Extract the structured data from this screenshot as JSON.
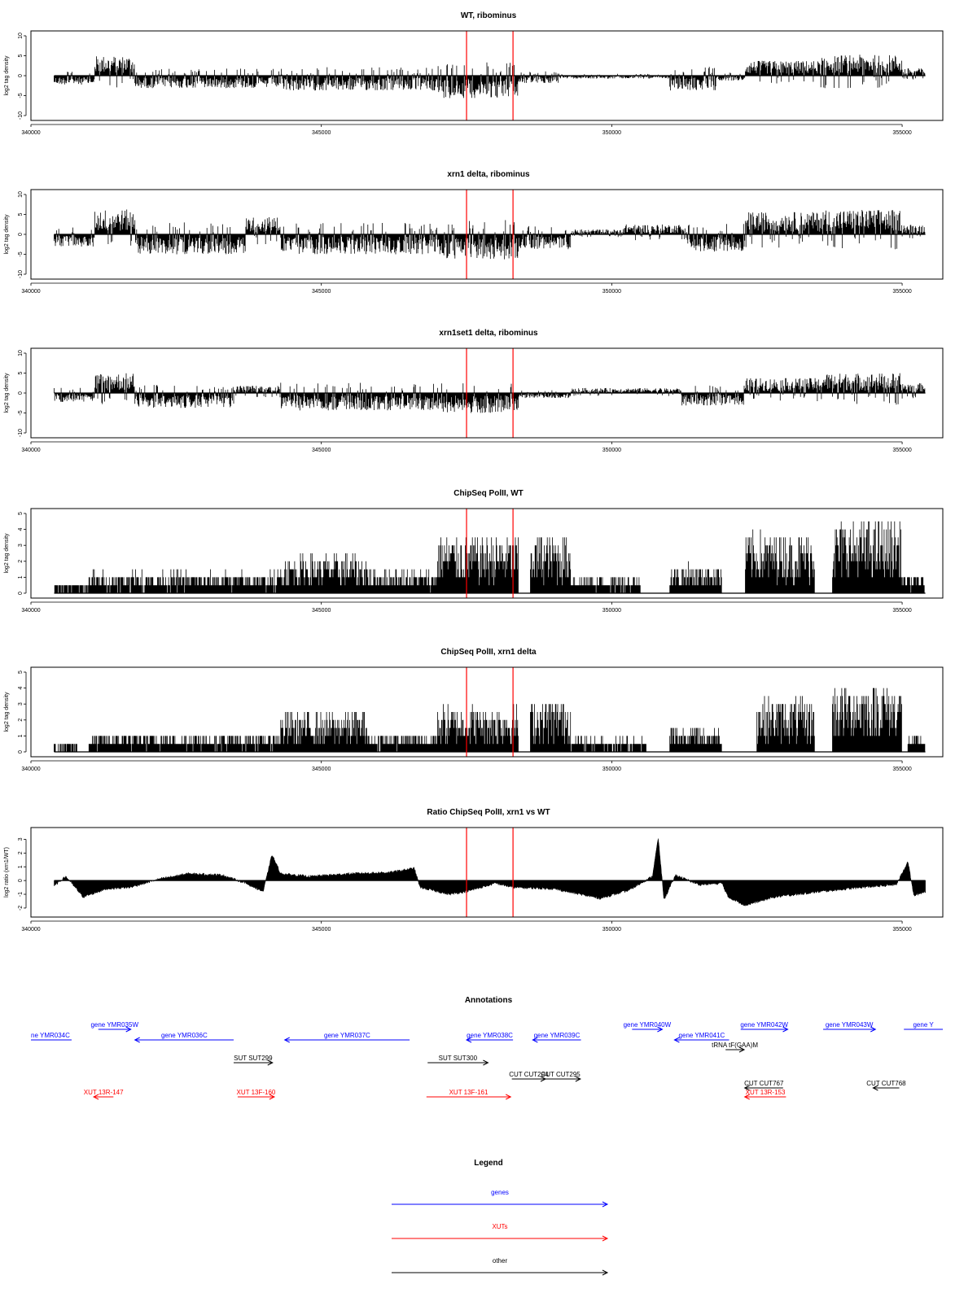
{
  "chart_data": [
    {
      "type": "bar",
      "title": "WT, ribominus",
      "ylabel": "log2 tag density",
      "xlim": [
        340000,
        355700
      ],
      "ylim": [
        -10,
        10
      ],
      "yticks": [
        "10",
        "5",
        "0",
        "-5",
        "-10"
      ],
      "xticks": [
        "340000",
        "345000",
        "350000",
        "355000"
      ],
      "markers": [
        347500,
        348300
      ],
      "profile_style": "signed",
      "segments": [
        {
          "start": 340400,
          "end": 341100,
          "level": -1.8
        },
        {
          "start": 341100,
          "end": 341800,
          "level": 4.0
        },
        {
          "start": 341800,
          "end": 344300,
          "level": -2.5
        },
        {
          "start": 344300,
          "end": 347000,
          "level": -3.0
        },
        {
          "start": 347000,
          "end": 348400,
          "level": -4.5
        },
        {
          "start": 348400,
          "end": 349100,
          "level": -1.5
        },
        {
          "start": 349100,
          "end": 351000,
          "level": -0.6
        },
        {
          "start": 351000,
          "end": 351800,
          "level": -3.0
        },
        {
          "start": 351800,
          "end": 352300,
          "level": -1.0
        },
        {
          "start": 352300,
          "end": 353600,
          "level": 3.0
        },
        {
          "start": 353600,
          "end": 355000,
          "level": 4.2
        },
        {
          "start": 355000,
          "end": 355400,
          "level": 1.5
        }
      ]
    },
    {
      "type": "bar",
      "title": "xrn1 delta, ribominus",
      "ylabel": "log2 tag density",
      "xlim": [
        340000,
        355700
      ],
      "ylim": [
        -10,
        10
      ],
      "yticks": [
        "10",
        "5",
        "0",
        "-5",
        "-10"
      ],
      "xticks": [
        "340000",
        "345000",
        "350000",
        "355000"
      ],
      "markers": [
        347500,
        348300
      ],
      "profile_style": "signed",
      "segments": [
        {
          "start": 340400,
          "end": 341100,
          "level": -2.5
        },
        {
          "start": 341100,
          "end": 341800,
          "level": 5.0
        },
        {
          "start": 341800,
          "end": 343700,
          "level": -4.0
        },
        {
          "start": 343700,
          "end": 344300,
          "level": 3.5
        },
        {
          "start": 344300,
          "end": 347000,
          "level": -4.0
        },
        {
          "start": 347000,
          "end": 348400,
          "level": -5.0
        },
        {
          "start": 348400,
          "end": 349300,
          "level": -3.0
        },
        {
          "start": 349300,
          "end": 350200,
          "level": 1.0
        },
        {
          "start": 350200,
          "end": 351300,
          "level": 2.0
        },
        {
          "start": 351300,
          "end": 352300,
          "level": -3.5
        },
        {
          "start": 352300,
          "end": 353600,
          "level": 4.5
        },
        {
          "start": 353600,
          "end": 355000,
          "level": 5.0
        },
        {
          "start": 355000,
          "end": 355400,
          "level": 2.0
        }
      ]
    },
    {
      "type": "bar",
      "title": "xrn1set1 delta, ribominus",
      "ylabel": "log2 tag density",
      "xlim": [
        340000,
        355700
      ],
      "ylim": [
        -10,
        10
      ],
      "yticks": [
        "10",
        "5",
        "0",
        "-5",
        "-10"
      ],
      "xticks": [
        "340000",
        "345000",
        "350000",
        "355000"
      ],
      "markers": [
        347500,
        348300
      ],
      "profile_style": "signed",
      "segments": [
        {
          "start": 340400,
          "end": 341100,
          "level": -1.8
        },
        {
          "start": 341100,
          "end": 341800,
          "level": 4.0
        },
        {
          "start": 341800,
          "end": 343500,
          "level": -3.0
        },
        {
          "start": 343500,
          "end": 344300,
          "level": 1.5
        },
        {
          "start": 344300,
          "end": 347000,
          "level": -3.5
        },
        {
          "start": 347000,
          "end": 348400,
          "level": -4.0
        },
        {
          "start": 348400,
          "end": 349300,
          "level": -1.0
        },
        {
          "start": 349300,
          "end": 351200,
          "level": 1.0
        },
        {
          "start": 351200,
          "end": 352300,
          "level": -2.5
        },
        {
          "start": 352300,
          "end": 353600,
          "level": 3.0
        },
        {
          "start": 353600,
          "end": 355000,
          "level": 4.0
        },
        {
          "start": 355000,
          "end": 355400,
          "level": 2.0
        }
      ]
    },
    {
      "type": "bar",
      "title": "ChipSeq PolII, WT",
      "ylabel": "log2 tag density",
      "xlim": [
        340000,
        355700
      ],
      "ylim": [
        0,
        5
      ],
      "yticks": [
        "5",
        "4",
        "3",
        "2",
        "1",
        "0"
      ],
      "xticks": [
        "340000",
        "345000",
        "350000",
        "355000"
      ],
      "markers": [
        347500,
        348300
      ],
      "profile_style": "positive",
      "segments": [
        {
          "start": 340400,
          "end": 341000,
          "level": 0.6
        },
        {
          "start": 341000,
          "end": 344300,
          "level": 1.1
        },
        {
          "start": 344300,
          "end": 345800,
          "level": 2.0
        },
        {
          "start": 345800,
          "end": 347000,
          "level": 1.2
        },
        {
          "start": 347000,
          "end": 348400,
          "level": 3.0
        },
        {
          "start": 348600,
          "end": 349300,
          "level": 3.1
        },
        {
          "start": 349300,
          "end": 350500,
          "level": 0.9
        },
        {
          "start": 351000,
          "end": 351900,
          "level": 1.5
        },
        {
          "start": 352300,
          "end": 353500,
          "level": 3.2
        },
        {
          "start": 353800,
          "end": 355000,
          "level": 3.8
        },
        {
          "start": 355000,
          "end": 355400,
          "level": 1.0
        }
      ]
    },
    {
      "type": "bar",
      "title": "ChipSeq PolII, xrn1 delta",
      "ylabel": "log2 tag density",
      "xlim": [
        340000,
        355700
      ],
      "ylim": [
        0,
        5
      ],
      "yticks": [
        "5",
        "4",
        "3",
        "2",
        "1",
        "0"
      ],
      "xticks": [
        "340000",
        "345000",
        "350000",
        "355000"
      ],
      "markers": [
        347500,
        348300
      ],
      "profile_style": "positive",
      "segments": [
        {
          "start": 340400,
          "end": 340800,
          "level": 0.5
        },
        {
          "start": 341000,
          "end": 344300,
          "level": 1.0
        },
        {
          "start": 344300,
          "end": 345800,
          "level": 2.1
        },
        {
          "start": 345800,
          "end": 347000,
          "level": 1.0
        },
        {
          "start": 347000,
          "end": 348400,
          "level": 2.4
        },
        {
          "start": 348600,
          "end": 349300,
          "level": 2.8
        },
        {
          "start": 349300,
          "end": 350600,
          "level": 0.7
        },
        {
          "start": 351000,
          "end": 351900,
          "level": 1.3
        },
        {
          "start": 352500,
          "end": 353500,
          "level": 2.8
        },
        {
          "start": 353800,
          "end": 355000,
          "level": 3.6
        },
        {
          "start": 355100,
          "end": 355400,
          "level": 0.8
        }
      ]
    },
    {
      "type": "area",
      "title": "Ratio ChipSeq PolII, xrn1 vs WT",
      "ylabel": "log2 ratio (xrn1/WT)",
      "xlim": [
        340000,
        355700
      ],
      "ylim": [
        -2.3,
        3.5
      ],
      "yticks": [
        "3",
        "2",
        "1",
        "0",
        "-1",
        "-2"
      ],
      "xticks": [
        "340000",
        "345000",
        "350000",
        "355000"
      ],
      "markers": [
        347500,
        348300
      ],
      "profile_style": "ratio",
      "points": [
        [
          340400,
          -0.4
        ],
        [
          340600,
          0.3
        ],
        [
          340900,
          -1.2
        ],
        [
          341300,
          -0.6
        ],
        [
          341700,
          -0.5
        ],
        [
          342200,
          0.1
        ],
        [
          342700,
          0.5
        ],
        [
          343300,
          0.4
        ],
        [
          343700,
          -0.2
        ],
        [
          344000,
          -0.8
        ],
        [
          344150,
          1.9
        ],
        [
          344300,
          0.5
        ],
        [
          344800,
          0.3
        ],
        [
          345500,
          0.5
        ],
        [
          346200,
          0.6
        ],
        [
          346600,
          0.9
        ],
        [
          346700,
          -0.5
        ],
        [
          347200,
          -1.0
        ],
        [
          347500,
          -0.8
        ],
        [
          348000,
          -0.2
        ],
        [
          348300,
          -0.5
        ],
        [
          349000,
          -0.6
        ],
        [
          349800,
          -1.3
        ],
        [
          350300,
          -0.7
        ],
        [
          350700,
          0.3
        ],
        [
          350800,
          3.1
        ],
        [
          350900,
          -1.4
        ],
        [
          351100,
          0.4
        ],
        [
          351500,
          -0.3
        ],
        [
          351900,
          -0.2
        ],
        [
          352000,
          -1.2
        ],
        [
          352300,
          -1.8
        ],
        [
          352800,
          -1.2
        ],
        [
          353600,
          -0.8
        ],
        [
          354300,
          -0.5
        ],
        [
          354900,
          -0.3
        ],
        [
          355100,
          1.4
        ],
        [
          355200,
          -1.1
        ],
        [
          355400,
          -0.8
        ]
      ]
    }
  ],
  "annotations": {
    "title": "Annotations",
    "xlim": [
      340000,
      355700
    ],
    "items": [
      {
        "label": "ne YMR034C",
        "category": "genes",
        "start": 339900,
        "end": 340700,
        "row": 1,
        "dir": "none"
      },
      {
        "label": "gene YMR035W",
        "category": "genes",
        "start": 341160,
        "end": 341720,
        "row": 0,
        "dir": "right"
      },
      {
        "label": "gene YMR036C",
        "category": "genes",
        "start": 341790,
        "end": 343490,
        "row": 1,
        "dir": "left"
      },
      {
        "label": "gene YMR037C",
        "category": "genes",
        "start": 344370,
        "end": 346520,
        "row": 1,
        "dir": "left"
      },
      {
        "label": "gene YMR038C",
        "category": "genes",
        "start": 347500,
        "end": 348300,
        "row": 1,
        "dir": "left"
      },
      {
        "label": "gene YMR039C",
        "category": "genes",
        "start": 348640,
        "end": 349470,
        "row": 1,
        "dir": "left"
      },
      {
        "label": "gene YMR040W",
        "category": "genes",
        "start": 350350,
        "end": 350870,
        "row": 0,
        "dir": "right"
      },
      {
        "label": "gene YMR041C",
        "category": "genes",
        "start": 351080,
        "end": 352020,
        "row": 1,
        "dir": "left"
      },
      {
        "label": "tRNA tF(GAA)M",
        "category": "other",
        "start": 351960,
        "end": 352280,
        "row": 2,
        "dir": "right"
      },
      {
        "label": "gene YMR042W",
        "category": "genes",
        "start": 352220,
        "end": 353030,
        "row": 0,
        "dir": "right"
      },
      {
        "label": "gene YMR043W",
        "category": "genes",
        "start": 353640,
        "end": 354540,
        "row": 0,
        "dir": "right"
      },
      {
        "label": "gene Y",
        "category": "genes",
        "start": 355030,
        "end": 355700,
        "row": 0,
        "dir": "none"
      },
      {
        "label": "SUT SUT299",
        "category": "other",
        "start": 343490,
        "end": 344160,
        "row": 3,
        "dir": "right"
      },
      {
        "label": "SUT SUT300",
        "category": "other",
        "start": 346830,
        "end": 347870,
        "row": 3,
        "dir": "right"
      },
      {
        "label": "CUT CUT294",
        "category": "other",
        "start": 348280,
        "end": 348860,
        "row": 4,
        "dir": "right"
      },
      {
        "label": "CUT CUT295",
        "category": "other",
        "start": 348780,
        "end": 349460,
        "row": 4,
        "dir": "right"
      },
      {
        "label": "CUT CUT767",
        "category": "other",
        "start": 352290,
        "end": 352950,
        "row": 5,
        "dir": "left"
      },
      {
        "label": "CUT CUT768",
        "category": "other",
        "start": 354500,
        "end": 354950,
        "row": 5,
        "dir": "left"
      },
      {
        "label": "XUT 13R-147",
        "category": "XUTs",
        "start": 341080,
        "end": 341420,
        "row": 6,
        "dir": "left"
      },
      {
        "label": "XUT 13F-160",
        "category": "XUTs",
        "start": 343560,
        "end": 344190,
        "row": 6,
        "dir": "right"
      },
      {
        "label": "XUT 13F-161",
        "category": "XUTs",
        "start": 346810,
        "end": 348260,
        "row": 6,
        "dir": "right"
      },
      {
        "label": "XUT 13R-153",
        "category": "XUTs",
        "start": 352290,
        "end": 353000,
        "row": 6,
        "dir": "left"
      }
    ]
  },
  "legend": {
    "title": "Legend",
    "items": [
      {
        "label": "genes",
        "category": "genes"
      },
      {
        "label": "XUTs",
        "category": "XUTs"
      },
      {
        "label": "other",
        "category": "other"
      }
    ]
  },
  "colors": {
    "genes": "#0000ff",
    "XUTs": "#ff0000",
    "other": "#000000",
    "marker": "#ff0000",
    "axis": "#000000",
    "bars": "#000000"
  }
}
